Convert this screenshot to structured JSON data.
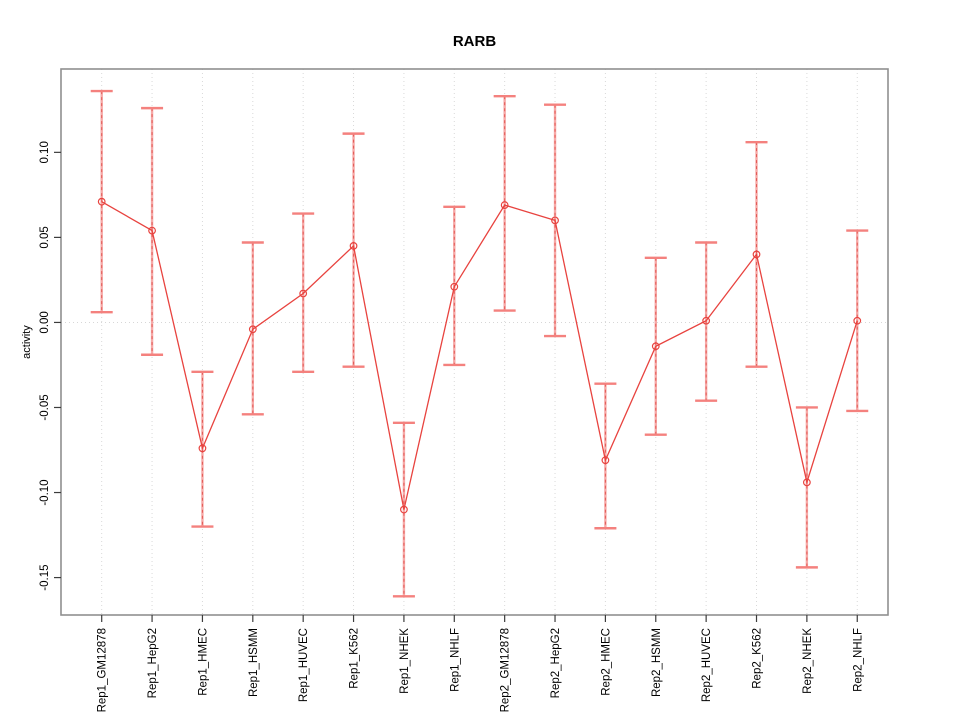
{
  "chart_data": {
    "type": "line",
    "title": "RARB",
    "xlabel": "",
    "ylabel": "activity",
    "categories": [
      "Rep1_GM12878",
      "Rep1_HepG2",
      "Rep1_HMEC",
      "Rep1_HSMM",
      "Rep1_HUVEC",
      "Rep1_K562",
      "Rep1_NHEK",
      "Rep1_NHLF",
      "Rep2_GM12878",
      "Rep2_HepG2",
      "Rep2_HMEC",
      "Rep2_HSMM",
      "Rep2_HUVEC",
      "Rep2_K562",
      "Rep2_NHEK",
      "Rep2_NHLF"
    ],
    "series": [
      {
        "name": "activity",
        "marker": "open-circle",
        "values": [
          0.071,
          0.054,
          -0.074,
          -0.004,
          0.017,
          0.045,
          -0.11,
          0.021,
          0.069,
          0.06,
          -0.081,
          -0.014,
          0.001,
          0.04,
          -0.094,
          0.001
        ],
        "error_high": [
          0.136,
          0.126,
          -0.029,
          0.047,
          0.064,
          0.111,
          -0.059,
          0.068,
          0.133,
          0.128,
          -0.036,
          0.038,
          0.047,
          0.106,
          -0.05,
          0.054
        ],
        "error_low": [
          0.006,
          -0.019,
          -0.12,
          -0.054,
          -0.029,
          -0.026,
          -0.161,
          -0.025,
          0.007,
          -0.008,
          -0.121,
          -0.066,
          -0.046,
          -0.026,
          -0.144,
          -0.052
        ]
      }
    ],
    "ylim": [
      -0.172,
      0.149
    ],
    "yticks": [
      {
        "value": 0.1,
        "label": "0.10"
      },
      {
        "value": 0.05,
        "label": "0.05"
      },
      {
        "value": 0.0,
        "label": "0.00"
      },
      {
        "value": -0.05,
        "label": "-0.05"
      },
      {
        "value": -0.1,
        "label": "-0.10"
      },
      {
        "value": -0.15,
        "label": "-0.15"
      }
    ],
    "grid": "dotted vertical gridline at each category; dotted horizontal line at zero",
    "legend": "none",
    "colors": {
      "line": "#e8433f",
      "marker": "#e8433f",
      "errorbar_fill": "#f6a9a7",
      "errorbar_cap": "#f4817e",
      "errorbar_dash": "#e25a56",
      "gridline": "#d9d9d9",
      "zero_line": "#d7d7d7",
      "box": "#8f8f8f",
      "tick": "#3c3c3c",
      "text": "#000000",
      "background": "#ffffff"
    }
  }
}
